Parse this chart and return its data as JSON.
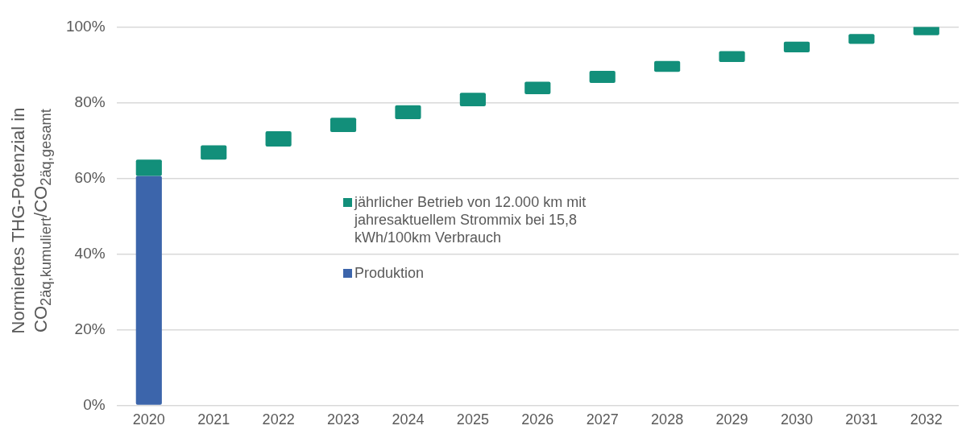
{
  "chart_data": {
    "type": "bar",
    "ylabel": "Normiertes THG-Potenzial in CO$_{2äq,kumuliert}$/CO$_{2äq,gesamt}$",
    "categories": [
      "2020",
      "2021",
      "2022",
      "2023",
      "2024",
      "2025",
      "2026",
      "2027",
      "2028",
      "2029",
      "2030",
      "2031",
      "2032"
    ],
    "series": [
      {
        "name": "jährlicher Betrieb von 12.000 km mit jahresaktuellem Strommix bei 15,8 kWh/100km Verbrauch",
        "color": "#128f7a",
        "base": [
          60.6,
          64.9,
          68.4,
          72.2,
          75.6,
          79.0,
          82.2,
          85.2,
          88.1,
          90.7,
          93.3,
          95.5,
          97.8
        ],
        "values": [
          4.3,
          3.8,
          4.0,
          3.8,
          3.7,
          3.6,
          3.3,
          3.2,
          2.9,
          2.9,
          2.8,
          2.6,
          2.4
        ]
      },
      {
        "name": "Produktion",
        "color": "#3c65ab",
        "values": [
          60.6,
          null,
          null,
          null,
          null,
          null,
          null,
          null,
          null,
          null,
          null,
          null,
          null
        ]
      }
    ],
    "ylim": [
      0,
      100
    ],
    "yticks": [
      {
        "value": 0,
        "label": "0%"
      },
      {
        "value": 20,
        "label": "20%"
      },
      {
        "value": 40,
        "label": "40%"
      },
      {
        "value": 60,
        "label": "60%"
      },
      {
        "value": 80,
        "label": "80%"
      },
      {
        "value": 100,
        "label": "100%"
      }
    ],
    "grid": "y",
    "legend": "center"
  }
}
